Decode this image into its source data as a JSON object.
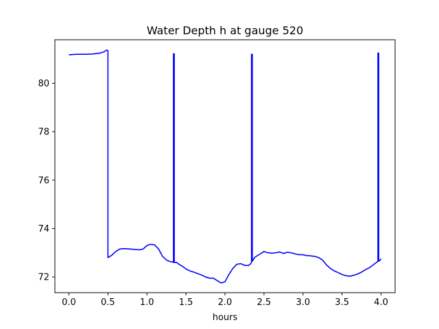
{
  "chart_data": {
    "type": "line",
    "title": "Water Depth h at gauge 520",
    "xlabel": "hours",
    "ylabel": "",
    "xlim": [
      -0.18,
      4.18
    ],
    "ylim": [
      71.35,
      81.8
    ],
    "xticks": [
      0.0,
      0.5,
      1.0,
      1.5,
      2.0,
      2.5,
      3.0,
      3.5,
      4.0
    ],
    "xtick_labels": [
      "0.0",
      "0.5",
      "1.0",
      "1.5",
      "2.0",
      "2.5",
      "3.0",
      "3.5",
      "4.0"
    ],
    "yticks": [
      72,
      74,
      76,
      78,
      80
    ],
    "ytick_labels": [
      "72",
      "74",
      "76",
      "78",
      "80"
    ],
    "grid": false,
    "series": [
      {
        "color": "#0000ff",
        "x": [
          0.0,
          0.1,
          0.2,
          0.3,
          0.4,
          0.45,
          0.48,
          0.5,
          0.5,
          0.55,
          0.6,
          0.65,
          0.7,
          0.8,
          0.9,
          0.95,
          1.0,
          1.05,
          1.1,
          1.15,
          1.2,
          1.25,
          1.3,
          1.33,
          1.34,
          1.34,
          1.35,
          1.35,
          1.38,
          1.4,
          1.42,
          1.45,
          1.5,
          1.55,
          1.6,
          1.7,
          1.75,
          1.8,
          1.85,
          1.9,
          1.95,
          2.0,
          2.05,
          2.1,
          2.15,
          2.2,
          2.25,
          2.3,
          2.33,
          2.34,
          2.34,
          2.35,
          2.35,
          2.38,
          2.4,
          2.45,
          2.5,
          2.55,
          2.6,
          2.65,
          2.7,
          2.75,
          2.8,
          2.85,
          2.9,
          2.95,
          3.0,
          3.05,
          3.1,
          3.15,
          3.2,
          3.25,
          3.3,
          3.35,
          3.4,
          3.45,
          3.5,
          3.55,
          3.6,
          3.65,
          3.7,
          3.75,
          3.8,
          3.85,
          3.9,
          3.95,
          3.96,
          3.96,
          3.97,
          3.97,
          3.99,
          4.0
        ],
        "y": [
          81.18,
          81.2,
          81.2,
          81.21,
          81.25,
          81.3,
          81.37,
          81.35,
          72.8,
          72.9,
          73.05,
          73.15,
          73.17,
          73.15,
          73.12,
          73.15,
          73.3,
          73.35,
          73.32,
          73.15,
          72.85,
          72.7,
          72.63,
          72.62,
          72.6,
          81.22,
          81.22,
          72.6,
          72.6,
          72.55,
          72.5,
          72.45,
          72.33,
          72.25,
          72.2,
          72.08,
          72.0,
          71.95,
          71.95,
          71.85,
          71.75,
          71.8,
          72.1,
          72.35,
          72.52,
          72.55,
          72.48,
          72.47,
          72.55,
          72.6,
          81.2,
          81.2,
          72.65,
          72.8,
          72.85,
          72.95,
          73.05,
          73.0,
          72.98,
          73.0,
          73.03,
          72.97,
          73.02,
          73.0,
          72.95,
          72.92,
          72.92,
          72.88,
          72.87,
          72.85,
          72.8,
          72.7,
          72.5,
          72.35,
          72.25,
          72.18,
          72.1,
          72.05,
          72.03,
          72.07,
          72.12,
          72.2,
          72.3,
          72.38,
          72.5,
          72.62,
          72.65,
          81.25,
          81.25,
          72.65,
          72.7,
          72.75
        ]
      }
    ]
  }
}
